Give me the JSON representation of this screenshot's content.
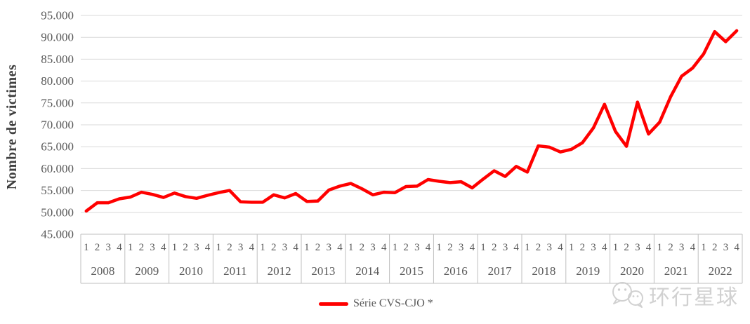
{
  "y_axis": {
    "title": "Nombre de victimes",
    "tick_labels": [
      "95.000",
      "90.000",
      "85.000",
      "80.000",
      "75.000",
      "70.000",
      "65.000",
      "60.000",
      "55.000",
      "50.000",
      "45.000"
    ]
  },
  "legend": {
    "label": "Série CVS-CJO *",
    "line_color": "#ff0000"
  },
  "watermark": {
    "text": "环行星球",
    "icon": "wechat-chat-bubbles-icon"
  },
  "colors": {
    "series_red": "#ff0000",
    "gridline": "#d9d9d9",
    "axis_border": "#bfbfbf",
    "tick_text": "#595959",
    "axis_title_text": "#3f3f3f",
    "watermark_gray": "#c9c9c9",
    "background": "#ffffff"
  },
  "chart_data": {
    "type": "line",
    "title": "",
    "xlabel": "",
    "ylabel": "Nombre de victimes",
    "ylim": [
      45000,
      95000
    ],
    "ytick_step": 5000,
    "grid": true,
    "legend_position": "bottom-center",
    "x_years": [
      "2008",
      "2009",
      "2010",
      "2011",
      "2012",
      "2013",
      "2014",
      "2015",
      "2016",
      "2017",
      "2018",
      "2019",
      "2020",
      "2021",
      "2022"
    ],
    "x_quarter_labels": [
      "1",
      "2",
      "3",
      "4"
    ],
    "series": [
      {
        "name": "Série CVS-CJO *",
        "color": "#ff0000",
        "values": [
          50300,
          52200,
          52200,
          53100,
          53500,
          54600,
          54100,
          53400,
          54400,
          53600,
          53200,
          53900,
          54500,
          55000,
          52400,
          52300,
          52300,
          54000,
          53300,
          54300,
          52500,
          52600,
          55100,
          56000,
          56600,
          55400,
          54000,
          54600,
          54500,
          55900,
          56000,
          57500,
          57100,
          56800,
          57000,
          55600,
          57600,
          59500,
          58200,
          60500,
          59200,
          65200,
          64900,
          63800,
          64400,
          65900,
          69300,
          74700,
          68500,
          65100,
          75200,
          67900,
          70600,
          76400,
          81100,
          83000,
          86200,
          91300,
          89000,
          91500
        ]
      }
    ]
  }
}
